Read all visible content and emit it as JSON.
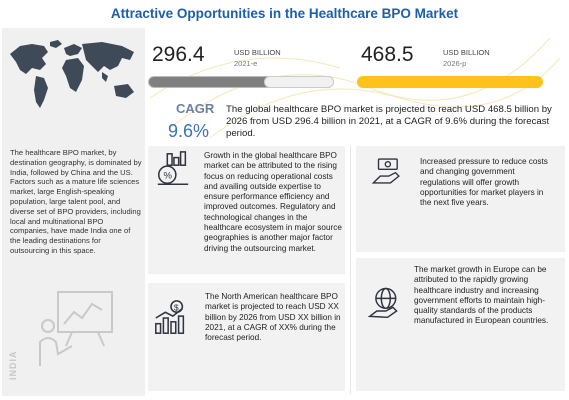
{
  "title": "Attractive Opportunities in the Healthcare BPO Market",
  "market_2021": {
    "value": "296.4",
    "unit": "USD BILLION",
    "year": "2021-e"
  },
  "market_2026": {
    "value": "468.5",
    "unit": "USD BILLION",
    "year": "2026-p"
  },
  "cagr": {
    "label": "CAGR",
    "value": "9.6%",
    "text": "The global healthcare BPO market is projected to reach USD 468.5 billion by 2026 from USD 296.4 billion in 2021, at a CAGR of 9.6% during the forecast period."
  },
  "left_panel": {
    "text": "The healthcare BPO market, by destination geography, is dominated by India, followed by China and the US. Factors such as a mature life sciences market, large English-speaking population, large talent pool, and diverse set of BPO providers, including local and multinational BPO companies, have made India one of the leading destinations for outsourcing in this space.",
    "vertical_label": "INDIA"
  },
  "insights": {
    "growth_drivers": "Growth in the global healthcare BPO market can be attributed to the rising focus on reducing operational costs and availing outside expertise to ensure performance efficiency and improved outcomes. Regulatory and technological changes in the healthcare ecosystem in major source geographies is another major factor driving the outsourcing market.",
    "cost_pressure": "Increased pressure to reduce costs and changing government regulations will offer growth opportunities for market players in the next five years.",
    "north_america": "The North American healthcare BPO market is projected to reach USD XX billion by 2026 from USD XX billion in 2021, at a CAGR of XX% during the forecast period.",
    "europe": "The market growth in Europe can be attributed to the rapidly growing healthcare industry and increasing government efforts to maintain high-quality standards of the products manufactured in European countries."
  },
  "colors": {
    "title": "#1f5ea8",
    "bar_2021": "#808080",
    "bar_2026": "#ffc21a",
    "cagr": "#3c73b5",
    "panel_bg": "#f0f0f0"
  },
  "icons": [
    "world-map-icon",
    "presenter-chart-icon",
    "cost-chart-icon",
    "money-hand-icon",
    "dollar-growth-icon",
    "globe-hand-icon"
  ]
}
